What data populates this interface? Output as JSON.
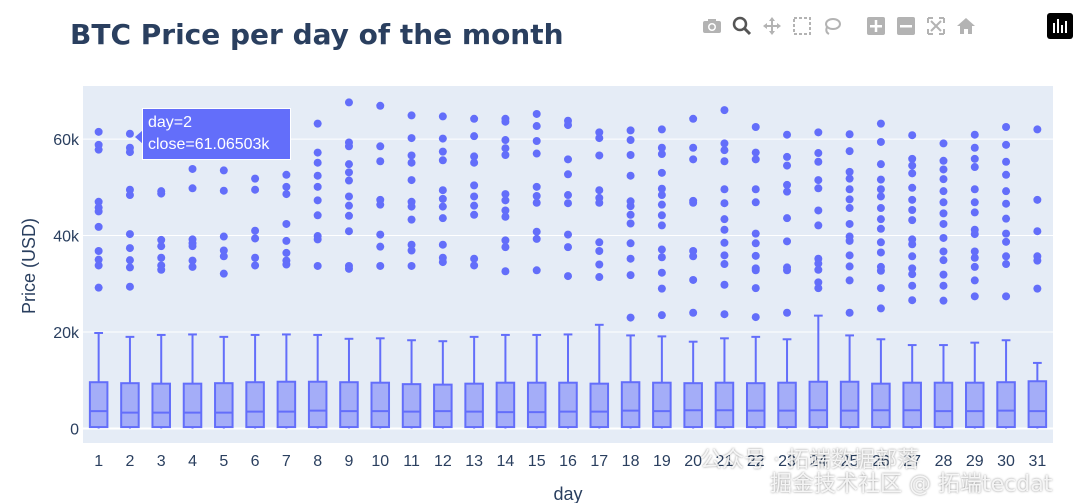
{
  "title": "BTC Price per day of the month",
  "xlabel": "day",
  "ylabel": "Price (USD)",
  "tooltip": {
    "line1": "day=2",
    "line2": "close=61.06503k"
  },
  "modebar": [
    "camera-icon",
    "zoom-icon",
    "pan-icon",
    "box-select-icon",
    "lasso-icon",
    "zoom-in-icon",
    "zoom-out-icon",
    "autoscale-icon",
    "home-icon",
    "plotly-logo-icon"
  ],
  "watermarks": {
    "line1": "公众号 · 拓端数据部落",
    "line2": "掘金技术社区 @ 拓端tecdat"
  },
  "colors": {
    "box": "#636efa",
    "plot_bg": "#e5ecf6",
    "grid": "#ffffff",
    "title": "#2a3f5f"
  },
  "chart_data": {
    "type": "box",
    "ylim": [
      -3000,
      71000
    ],
    "yticks": [
      0,
      20000,
      40000,
      60000
    ],
    "ytick_labels": [
      "0",
      "20k",
      "40k",
      "60k"
    ],
    "categories": [
      "1",
      "2",
      "3",
      "4",
      "5",
      "6",
      "7",
      "8",
      "9",
      "10",
      "11",
      "12",
      "13",
      "14",
      "15",
      "16",
      "17",
      "18",
      "19",
      "20",
      "21",
      "22",
      "23",
      "24",
      "25",
      "26",
      "27",
      "28",
      "29",
      "30",
      "31"
    ],
    "boxes": [
      {
        "q1": 300,
        "median": 3600,
        "q3": 9600,
        "upper": 19800,
        "outliers": [
          61500,
          58800,
          57800,
          47000,
          45800,
          45000,
          41800,
          36800,
          35000,
          33800,
          29200
        ]
      },
      {
        "q1": 300,
        "median": 3300,
        "q3": 9400,
        "upper": 19000,
        "outliers": [
          61100,
          58200,
          57300,
          49500,
          48400,
          40300,
          37400,
          34900,
          33400,
          29400
        ]
      },
      {
        "q1": 300,
        "median": 3300,
        "q3": 9300,
        "upper": 19400,
        "outliers": [
          49200,
          48700,
          39100,
          37800,
          35400,
          33800,
          32900
        ]
      },
      {
        "q1": 300,
        "median": 3300,
        "q3": 9300,
        "upper": 19500,
        "outliers": [
          57600,
          53800,
          49800,
          39200,
          38400,
          37800,
          34800,
          33500
        ]
      },
      {
        "q1": 300,
        "median": 3300,
        "q3": 9400,
        "upper": 19000,
        "outliers": [
          57700,
          53500,
          49300,
          39800,
          36900,
          35700,
          32100
        ]
      },
      {
        "q1": 300,
        "median": 3500,
        "q3": 9600,
        "upper": 19400,
        "outliers": [
          51800,
          49500,
          41000,
          39400,
          35400,
          33800
        ]
      },
      {
        "q1": 300,
        "median": 3500,
        "q3": 9700,
        "upper": 19500,
        "outliers": [
          60200,
          57300,
          52600,
          50100,
          48600,
          42400,
          38900,
          36400,
          34800,
          34000
        ]
      },
      {
        "q1": 300,
        "median": 3700,
        "q3": 9700,
        "upper": 19400,
        "outliers": [
          63200,
          57200,
          55100,
          52400,
          50100,
          47300,
          44200,
          39900,
          39200,
          33700
        ]
      },
      {
        "q1": 300,
        "median": 3600,
        "q3": 9600,
        "upper": 18600,
        "outliers": [
          67600,
          59300,
          58500,
          54800,
          53100,
          51400,
          48100,
          46200,
          44100,
          40900,
          33700,
          33100
        ]
      },
      {
        "q1": 300,
        "median": 3600,
        "q3": 9500,
        "upper": 18700,
        "outliers": [
          66900,
          58500,
          55400,
          47400,
          46400,
          40200,
          37700,
          33700
        ]
      },
      {
        "q1": 300,
        "median": 3500,
        "q3": 9200,
        "upper": 18300,
        "outliers": [
          64900,
          60200,
          56600,
          55100,
          51500,
          47000,
          46000,
          43300,
          38100,
          36900,
          33700
        ]
      },
      {
        "q1": 300,
        "median": 3600,
        "q3": 9100,
        "upper": 18100,
        "outliers": [
          64700,
          60100,
          57400,
          55600,
          49400,
          47600,
          46000,
          43600,
          38100,
          35400,
          34500
        ]
      },
      {
        "q1": 300,
        "median": 3500,
        "q3": 9300,
        "upper": 19000,
        "outliers": [
          64200,
          60600,
          56400,
          55100,
          50400,
          48100,
          46200,
          44300,
          35200,
          33800
        ]
      },
      {
        "q1": 300,
        "median": 3400,
        "q3": 9500,
        "upper": 19400,
        "outliers": [
          64200,
          63600,
          59800,
          58100,
          56700,
          48600,
          47300,
          45200,
          43900,
          39000,
          37600,
          32600
        ]
      },
      {
        "q1": 300,
        "median": 3400,
        "q3": 9500,
        "upper": 19400,
        "outliers": [
          65200,
          62700,
          59600,
          57000,
          50100,
          48200,
          46800,
          40800,
          39300,
          32800
        ]
      },
      {
        "q1": 300,
        "median": 3500,
        "q3": 9500,
        "upper": 19500,
        "outliers": [
          63800,
          62900,
          55800,
          52700,
          48400,
          46700,
          40200,
          37600,
          31600
        ]
      },
      {
        "q1": 300,
        "median": 3500,
        "q3": 9300,
        "upper": 21500,
        "outliers": [
          61400,
          60200,
          56600,
          49400,
          47800,
          46800,
          38600,
          36800,
          34000,
          31400
        ]
      },
      {
        "q1": 300,
        "median": 3700,
        "q3": 9600,
        "upper": 19300,
        "outliers": [
          61800,
          59800,
          56700,
          52400,
          47100,
          46100,
          44300,
          42500,
          38400,
          35200,
          31800,
          23000
        ]
      },
      {
        "q1": 300,
        "median": 3600,
        "q3": 9500,
        "upper": 19100,
        "outliers": [
          62000,
          58200,
          56900,
          53000,
          49700,
          48400,
          46400,
          44200,
          42100,
          37100,
          35500,
          32300,
          29000,
          23500
        ]
      },
      {
        "q1": 300,
        "median": 3800,
        "q3": 9400,
        "upper": 18000,
        "outliers": [
          64200,
          58200,
          55800,
          47200,
          46800,
          36800,
          35700,
          30800,
          24000
        ]
      },
      {
        "q1": 300,
        "median": 3800,
        "q3": 9500,
        "upper": 18700,
        "outliers": [
          66000,
          59100,
          57700,
          55400,
          49600,
          46700,
          43400,
          41200,
          38500,
          35900,
          34100,
          29800,
          23700
        ]
      },
      {
        "q1": 300,
        "median": 3700,
        "q3": 9400,
        "upper": 19000,
        "outliers": [
          62500,
          57200,
          55800,
          49600,
          46900,
          40400,
          38400,
          35800,
          33200,
          32800,
          29100,
          23100
        ]
      },
      {
        "q1": 300,
        "median": 3700,
        "q3": 9500,
        "upper": 18500,
        "outliers": [
          60900,
          56300,
          54500,
          50500,
          49100,
          43600,
          38800,
          33400,
          32800,
          24000
        ]
      },
      {
        "q1": 300,
        "median": 3800,
        "q3": 9700,
        "upper": 23400,
        "outliers": [
          61400,
          57100,
          55300,
          51500,
          49800,
          45200,
          42100,
          35200,
          34200,
          32900,
          30300,
          29100
        ]
      },
      {
        "q1": 300,
        "median": 3700,
        "q3": 9700,
        "upper": 19300,
        "outliers": [
          61000,
          57500,
          53200,
          51800,
          49600,
          47500,
          45700,
          42400,
          39800,
          38900,
          35900,
          33600,
          30700,
          24000
        ]
      },
      {
        "q1": 300,
        "median": 3800,
        "q3": 9300,
        "upper": 18500,
        "outliers": [
          63200,
          59400,
          54800,
          51600,
          49600,
          48100,
          45700,
          43400,
          41400,
          38600,
          36500,
          33500,
          32700,
          29100,
          24900
        ]
      },
      {
        "q1": 300,
        "median": 3800,
        "q3": 9500,
        "upper": 17300,
        "outliers": [
          60800,
          55900,
          54500,
          52900,
          49900,
          47400,
          45300,
          43200,
          39200,
          38200,
          35700,
          33200,
          32000,
          29600,
          26600
        ]
      },
      {
        "q1": 300,
        "median": 3600,
        "q3": 9500,
        "upper": 17300,
        "outliers": [
          59100,
          55500,
          53700,
          51700,
          49200,
          46900,
          44600,
          42400,
          39500,
          36700,
          34900,
          31900,
          29600,
          26500
        ]
      },
      {
        "q1": 300,
        "median": 3600,
        "q3": 9500,
        "upper": 17800,
        "outliers": [
          60900,
          58200,
          55900,
          54200,
          49600,
          46900,
          44800,
          41200,
          40300,
          36700,
          35400,
          33500,
          30700,
          27400
        ]
      },
      {
        "q1": 300,
        "median": 3700,
        "q3": 9600,
        "upper": 18300,
        "outliers": [
          62500,
          58800,
          55300,
          52600,
          49200,
          46600,
          43500,
          40400,
          38700,
          35700,
          34100,
          27400
        ]
      },
      {
        "q1": 300,
        "median": 3600,
        "q3": 9800,
        "upper": 13600,
        "outliers": [
          62000,
          47400,
          40900,
          35700,
          34800,
          29000
        ]
      }
    ]
  }
}
